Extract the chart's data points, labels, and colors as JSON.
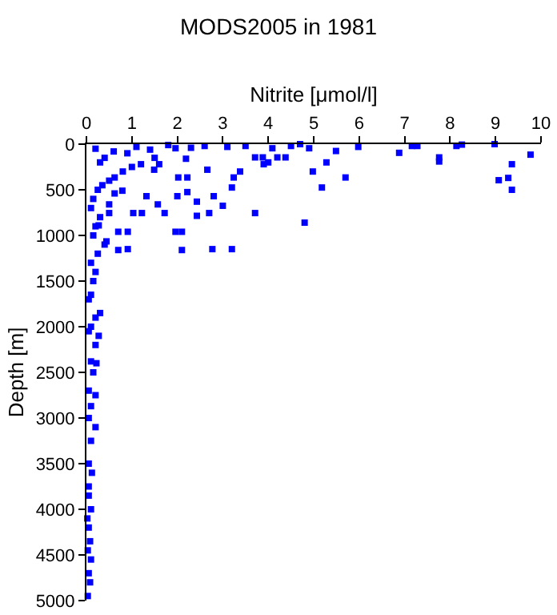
{
  "chart_data": {
    "type": "scatter",
    "title": "MODS2005 in 1981",
    "xlabel": "Nitrite [μmol/l]",
    "ylabel": "Depth [m]",
    "xlim": [
      0,
      10
    ],
    "xticks": [
      0,
      1,
      2,
      3,
      4,
      5,
      6,
      7,
      8,
      9,
      10
    ],
    "ylim": [
      5000,
      0
    ],
    "yticks": [
      0,
      500,
      1000,
      1500,
      2000,
      2500,
      3000,
      3500,
      4000,
      4500,
      5000
    ],
    "grid": false,
    "marker": "square",
    "series": [
      {
        "color": "#0000ff",
        "x": [
          9.77,
          9.36,
          9.28,
          9.36,
          9.07,
          8.98,
          8.14,
          8.26,
          7.76,
          7.76,
          7.28,
          7.16,
          6.88,
          5.98,
          5.7,
          5.49,
          5.28,
          5.18,
          4.98,
          4.9,
          4.7,
          4.5,
          4.38,
          4.2,
          4.09,
          4.0,
          3.9,
          3.88,
          3.71,
          3.71,
          4.8,
          3.24,
          3.38,
          3.2,
          3.2,
          3.0,
          2.77,
          2.8,
          2.66,
          2.7,
          2.43,
          2.43,
          2.22,
          2.22,
          2.1,
          1.96,
          2.1,
          2.0,
          2.02,
          1.72,
          1.57,
          1.32,
          1.22,
          1.03,
          0.91,
          0.91,
          0.79,
          0.7,
          0.7,
          0.62,
          0.5,
          0.5,
          0.44,
          0.27,
          1.2,
          1.49,
          0.62,
          2.19,
          1.96,
          1.6,
          3.5,
          3.1,
          2.6,
          2.3,
          1.8,
          1.4,
          1.1,
          0.9,
          0.6,
          0.4,
          0.3,
          0.2,
          1.5,
          1.0,
          0.8,
          0.5,
          0.35,
          0.25,
          0.15,
          0.1,
          0.3,
          0.2,
          0.15,
          0.4,
          0.25,
          0.1,
          0.2,
          0.15,
          0.1,
          0.05,
          0.3,
          0.2,
          0.1,
          0.05,
          0.27,
          0.2,
          0.1,
          0.22,
          0.15,
          0.05,
          0.2,
          0.1,
          0.05,
          0.2,
          0.1,
          0.05,
          0.12,
          0.05,
          0.1,
          0.05,
          0.08,
          0.03,
          0.1,
          0.05,
          0.08,
          0.03,
          0.05,
          0.02
        ],
        "values": [
          115,
          220,
          370,
          500,
          395,
          0,
          20,
          5,
          145,
          190,
          20,
          20,
          95,
          30,
          365,
          75,
          200,
          475,
          300,
          45,
          0,
          20,
          145,
          145,
          45,
          200,
          220,
          145,
          145,
          755,
          860,
          365,
          300,
          475,
          1150,
          675,
          1150,
          570,
          280,
          755,
          630,
          785,
          525,
          365,
          1160,
          960,
          960,
          570,
          365,
          755,
          660,
          570,
          755,
          755,
          960,
          1150,
          510,
          1160,
          960,
          540,
          660,
          755,
          1065,
          890,
          220,
          280,
          365,
          160,
          45,
          220,
          20,
          30,
          20,
          40,
          10,
          60,
          30,
          100,
          80,
          150,
          200,
          50,
          150,
          250,
          300,
          400,
          450,
          500,
          600,
          700,
          800,
          900,
          1000,
          1100,
          1200,
          1300,
          1400,
          1500,
          1650,
          1700,
          1850,
          1900,
          2000,
          2050,
          2100,
          2200,
          2380,
          2400,
          2500,
          2700,
          2750,
          2870,
          3000,
          3100,
          3250,
          3500,
          3600,
          3850,
          4000,
          4200,
          4350,
          4450,
          4550,
          4700,
          4800,
          4950,
          3750,
          4100
        ]
      }
    ]
  }
}
